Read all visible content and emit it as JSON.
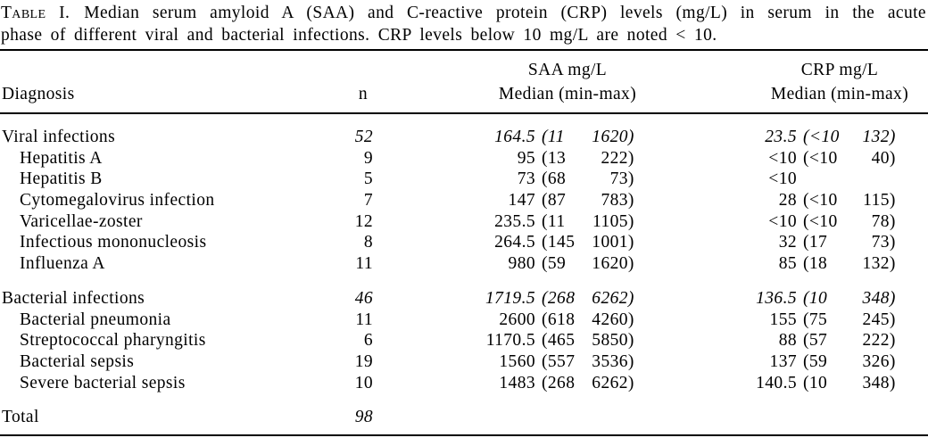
{
  "caption": {
    "label": "Table I.",
    "line1": "Median serum amyloid A (SAA) and C-reactive protein (CRP) levels (mg/L) in serum in the acute",
    "line2": "phase of different viral and bacterial infections. CRP levels below 10 mg/L are noted < 10."
  },
  "header": {
    "diagnosis": "Diagnosis",
    "n": "n",
    "saa": {
      "title": "SAA mg/L",
      "subtitle": "Median (min-max)"
    },
    "crp": {
      "title": "CRP mg/L",
      "subtitle": "Median (min-max)"
    }
  },
  "rows": [
    {
      "diagnosis": "Viral infections",
      "group": true,
      "indent": false,
      "gap": false,
      "n": "52",
      "saa": {
        "median": "164.5",
        "min": "11",
        "max": "1620"
      },
      "crp": {
        "median": "23.5",
        "min": "<10",
        "max": "132"
      }
    },
    {
      "diagnosis": "Hepatitis A",
      "group": false,
      "indent": true,
      "gap": false,
      "n": "9",
      "saa": {
        "median": "95",
        "min": "13",
        "max": "222"
      },
      "crp": {
        "median": "<10",
        "min": "<10",
        "max": "40"
      }
    },
    {
      "diagnosis": "Hepatitis B",
      "group": false,
      "indent": true,
      "gap": false,
      "n": "5",
      "saa": {
        "median": "73",
        "min": "68",
        "max": "73"
      },
      "crp": {
        "median": "<10"
      }
    },
    {
      "diagnosis": "Cytomegalovirus infection",
      "group": false,
      "indent": true,
      "gap": false,
      "n": "7",
      "saa": {
        "median": "147",
        "min": "87",
        "max": "783"
      },
      "crp": {
        "median": "28",
        "min": "<10",
        "max": "115"
      }
    },
    {
      "diagnosis": "Varicellae-zoster",
      "group": false,
      "indent": true,
      "gap": false,
      "n": "12",
      "saa": {
        "median": "235.5",
        "min": "11",
        "max": "1105"
      },
      "crp": {
        "median": "<10",
        "min": "<10",
        "max": "78"
      }
    },
    {
      "diagnosis": "Infectious mononucleosis",
      "group": false,
      "indent": true,
      "gap": false,
      "n": "8",
      "saa": {
        "median": "264.5",
        "min": "145",
        "max": "1001"
      },
      "crp": {
        "median": "32",
        "min": "17",
        "max": "73"
      }
    },
    {
      "diagnosis": "Influenza A",
      "group": false,
      "indent": true,
      "gap": false,
      "n": "11",
      "saa": {
        "median": "980",
        "min": "59",
        "max": "1620"
      },
      "crp": {
        "median": "85",
        "min": "18",
        "max": "132"
      }
    },
    {
      "diagnosis": "Bacterial infections",
      "group": true,
      "indent": false,
      "gap": true,
      "n": "46",
      "saa": {
        "median": "1719.5",
        "min": "268",
        "max": "6262"
      },
      "crp": {
        "median": "136.5",
        "min": "10",
        "max": "348"
      }
    },
    {
      "diagnosis": "Bacterial pneumonia",
      "group": false,
      "indent": true,
      "gap": false,
      "n": "11",
      "saa": {
        "median": "2600",
        "min": "618",
        "max": "4260"
      },
      "crp": {
        "median": "155",
        "min": "75",
        "max": "245"
      }
    },
    {
      "diagnosis": "Streptococcal pharyngitis",
      "group": false,
      "indent": true,
      "gap": false,
      "n": "6",
      "saa": {
        "median": "1170.5",
        "min": "465",
        "max": "5850"
      },
      "crp": {
        "median": "88",
        "min": "57",
        "max": "222"
      }
    },
    {
      "diagnosis": "Bacterial sepsis",
      "group": false,
      "indent": true,
      "gap": false,
      "n": "19",
      "saa": {
        "median": "1560",
        "min": "557",
        "max": "3536"
      },
      "crp": {
        "median": "137",
        "min": "59",
        "max": "326"
      }
    },
    {
      "diagnosis": "Severe bacterial sepsis",
      "group": false,
      "indent": true,
      "gap": false,
      "n": "10",
      "saa": {
        "median": "1483",
        "min": "268",
        "max": "6262"
      },
      "crp": {
        "median": "140.5",
        "min": "10",
        "max": "348"
      }
    },
    {
      "diagnosis": "Total",
      "group": true,
      "indent": false,
      "gap": true,
      "n": "98",
      "saa": {
        "median": ""
      },
      "crp": {
        "median": ""
      }
    }
  ],
  "colors": {
    "text": "#000000",
    "background": "#ffffff",
    "rule": "#000000"
  }
}
